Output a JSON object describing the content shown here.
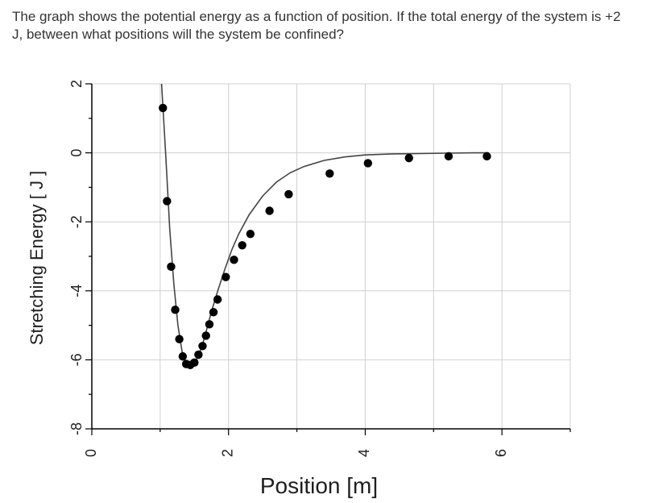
{
  "question": {
    "text": "The graph shows the potential energy as a function of position.  If the total energy of the system is +2 J, between what positions will the system be confined?"
  },
  "chart_data": {
    "type": "scatter",
    "title": "",
    "xlabel": "Position  [m]",
    "ylabel": "Stretching Energy [ J ]",
    "xlim": [
      0,
      7
    ],
    "ylim": [
      -8,
      2
    ],
    "x_ticks": [
      0,
      2,
      4,
      6
    ],
    "x_tick_labels": [
      "0",
      "2",
      "4",
      "6"
    ],
    "y_ticks": [
      -8,
      -6,
      -4,
      -2,
      0,
      2
    ],
    "y_tick_labels": [
      "-8",
      "-6",
      "-4",
      "-2",
      "0",
      "2"
    ],
    "grid": true,
    "legend": "none",
    "colors": {
      "points": "#000000",
      "curve": "#444444",
      "grid": "#d0d0d0",
      "axis": "#000000"
    },
    "series": [
      {
        "kind": "points",
        "x": [
          1.04,
          1.1,
          1.16,
          1.22,
          1.28,
          1.33,
          1.38,
          1.44,
          1.5,
          1.56,
          1.62,
          1.67,
          1.72,
          1.78,
          1.84,
          1.96,
          2.08,
          2.2,
          2.32,
          2.6,
          2.88,
          3.48,
          4.04,
          4.64,
          5.22,
          5.78
        ],
        "y": [
          1.3,
          -1.4,
          -3.3,
          -4.55,
          -5.4,
          -5.9,
          -6.12,
          -6.15,
          -6.08,
          -5.85,
          -5.6,
          -5.3,
          -4.97,
          -4.62,
          -4.25,
          -3.6,
          -3.1,
          -2.68,
          -2.35,
          -1.68,
          -1.2,
          -0.6,
          -0.3,
          -0.15,
          -0.1,
          -0.1
        ]
      },
      {
        "kind": "curve",
        "x": [
          1.02,
          1.08,
          1.14,
          1.2,
          1.26,
          1.32,
          1.38,
          1.44,
          1.5,
          1.56,
          1.62,
          1.68,
          1.75,
          1.85,
          1.95,
          2.05,
          2.15,
          2.3,
          2.5,
          2.7,
          2.9,
          3.1,
          3.4,
          3.7,
          4.0,
          4.4,
          4.8,
          5.2,
          5.6,
          5.8
        ],
        "y": [
          2.0,
          0.0,
          -2.2,
          -3.8,
          -5.0,
          -5.75,
          -6.1,
          -6.18,
          -6.1,
          -5.88,
          -5.55,
          -5.12,
          -4.6,
          -3.95,
          -3.35,
          -2.8,
          -2.35,
          -1.8,
          -1.25,
          -0.85,
          -0.58,
          -0.4,
          -0.22,
          -0.12,
          -0.06,
          -0.03,
          -0.02,
          -0.01,
          0.0,
          0.0
        ]
      }
    ]
  }
}
